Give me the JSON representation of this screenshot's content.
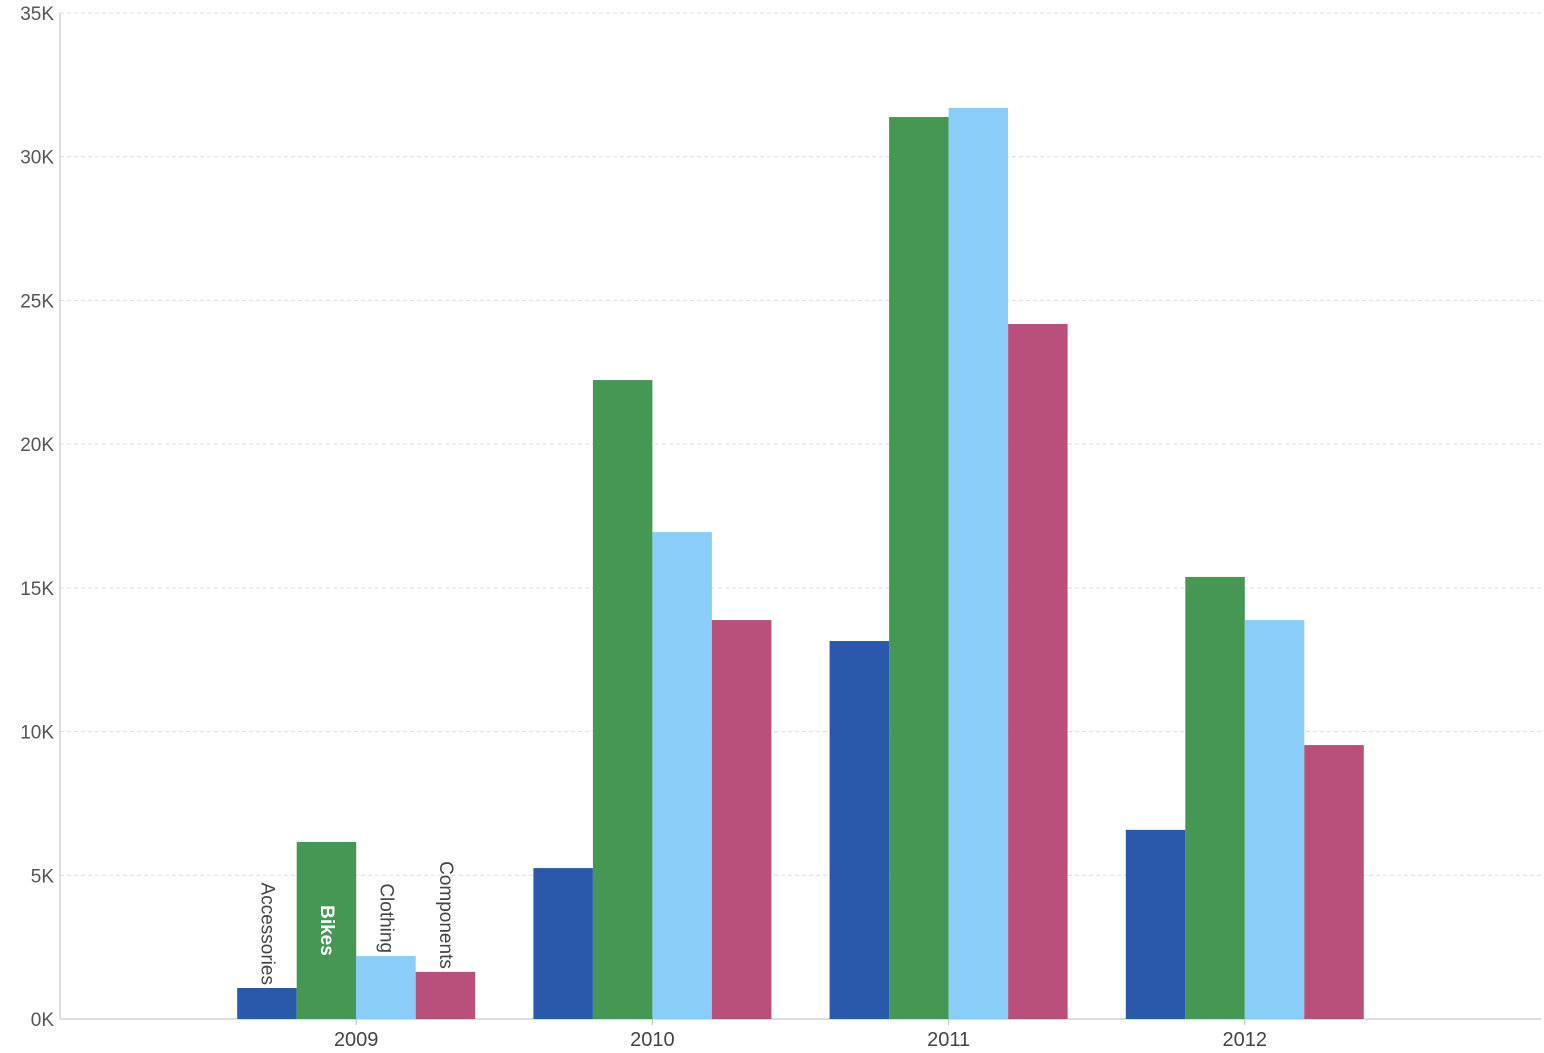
{
  "chart_data": {
    "type": "bar",
    "title": "",
    "xlabel": "",
    "ylabel": "",
    "categories": [
      "2009",
      "2010",
      "2011",
      "2012"
    ],
    "ylim": [
      0,
      35000
    ],
    "yticks": [
      0,
      5000,
      10000,
      15000,
      20000,
      25000,
      30000,
      35000
    ],
    "ytick_labels": [
      "0K",
      "5K",
      "10K",
      "15K",
      "20K",
      "25K",
      "30K",
      "35K"
    ],
    "grid": "horizontal dashed",
    "legend": "none; series names shown as rotated labels on the 2009 bars",
    "series": [
      {
        "name": "Accessories",
        "color": "#2a58ab",
        "values": [
          1080,
          5250,
          13150,
          6580
        ]
      },
      {
        "name": "Bikes",
        "color": "#459753",
        "values": [
          6160,
          22230,
          31380,
          15380
        ]
      },
      {
        "name": "Clothing",
        "color": "#8acdf8",
        "values": [
          2190,
          16940,
          31700,
          13880
        ]
      },
      {
        "name": "Components",
        "color": "#b9507c",
        "values": [
          1640,
          13880,
          24180,
          9530
        ]
      }
    ]
  }
}
